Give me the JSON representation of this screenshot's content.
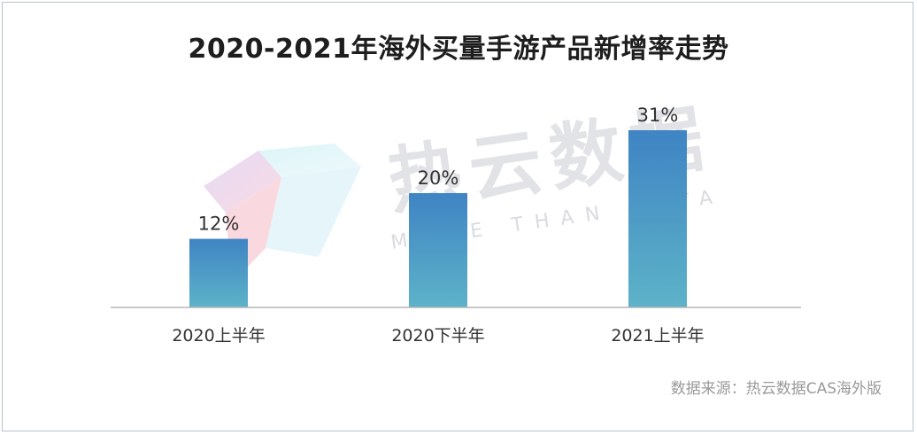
{
  "title": "2020-2021年海外买量手游产品新增率走势",
  "watermark": {
    "cn": "热云数据",
    "en": "MORE THAN DATA"
  },
  "source": "数据来源：热云数据CAS海外版",
  "colors": {
    "bar_top": "#3f84c4",
    "bar_bottom": "#5db3c8",
    "axis": "#b5b5b5",
    "text": "#333333"
  },
  "chart_data": {
    "type": "bar",
    "title": "2020-2021年海外买量手游产品新增率走势",
    "categories": [
      "2020上半年",
      "2020下半年",
      "2021上半年"
    ],
    "values": [
      12,
      20,
      31
    ],
    "value_labels": [
      "12%",
      "20%",
      "31%"
    ],
    "unit": "%",
    "xlabel": "",
    "ylabel": "",
    "ylim": [
      0,
      31
    ],
    "grid": false,
    "legend": "none"
  }
}
